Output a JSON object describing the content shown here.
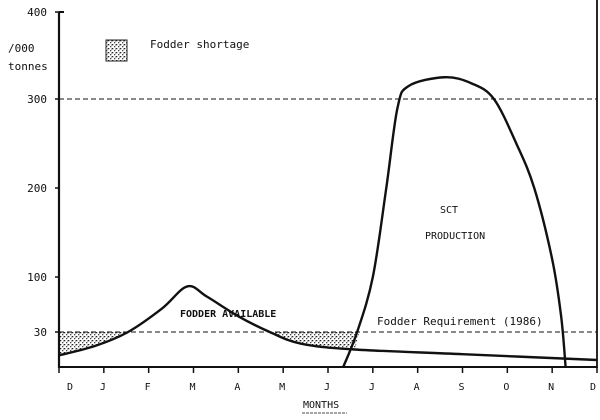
{
  "chart_data": {
    "type": "line",
    "title": "",
    "ylabel": [
      "/000",
      "tonnes"
    ],
    "xlabel": "MONTHS",
    "x_ticks": [
      "D",
      "J",
      "F",
      "M",
      "A",
      "M",
      "J",
      "J",
      "A",
      "S",
      "O",
      "N",
      "D"
    ],
    "y_ticks": [
      30,
      100,
      200,
      300,
      400
    ],
    "ylim": [
      0,
      400
    ],
    "legend": {
      "label": "Fodder shortage",
      "placement": "top-left",
      "swatch": "stippled"
    },
    "reference_lines": [
      {
        "label": "Fodder Requirement (1986)",
        "y": 30,
        "style": "dashed"
      },
      {
        "label": "",
        "y": 300,
        "style": "dashed"
      }
    ],
    "series": [
      {
        "name": "FODDER AVAILABLE",
        "x": [
          0,
          0.8,
          1.54,
          2.3,
          2.86,
          3.3,
          4.0,
          4.7,
          5.4,
          6.6,
          9.0,
          12.0
        ],
        "y": [
          10,
          18,
          30,
          60,
          88,
          75,
          50,
          30,
          20,
          15,
          11,
          6
        ]
      },
      {
        "name": "SCT PRODUCTION",
        "x": [
          6.34,
          6.65,
          7.0,
          7.3,
          7.55,
          7.8,
          8.6,
          9.2,
          9.7,
          10.2,
          10.6,
          11.0,
          11.2,
          11.3
        ],
        "y": [
          0,
          30,
          100,
          200,
          290,
          315,
          325,
          318,
          300,
          250,
          200,
          120,
          50,
          0
        ]
      }
    ],
    "shaded_regions": [
      {
        "label": "Fodder shortage",
        "x_range": [
          0,
          1.54
        ]
      },
      {
        "label": "Fodder shortage",
        "x_range": [
          4.7,
          6.6
        ]
      }
    ],
    "annotations": [
      "SCT",
      "PRODUCTION",
      "FODDER AVAILABLE",
      "Fodder Requirement (1986)"
    ],
    "colors": {
      "ink": "#111111",
      "background": "#ffffff"
    }
  }
}
